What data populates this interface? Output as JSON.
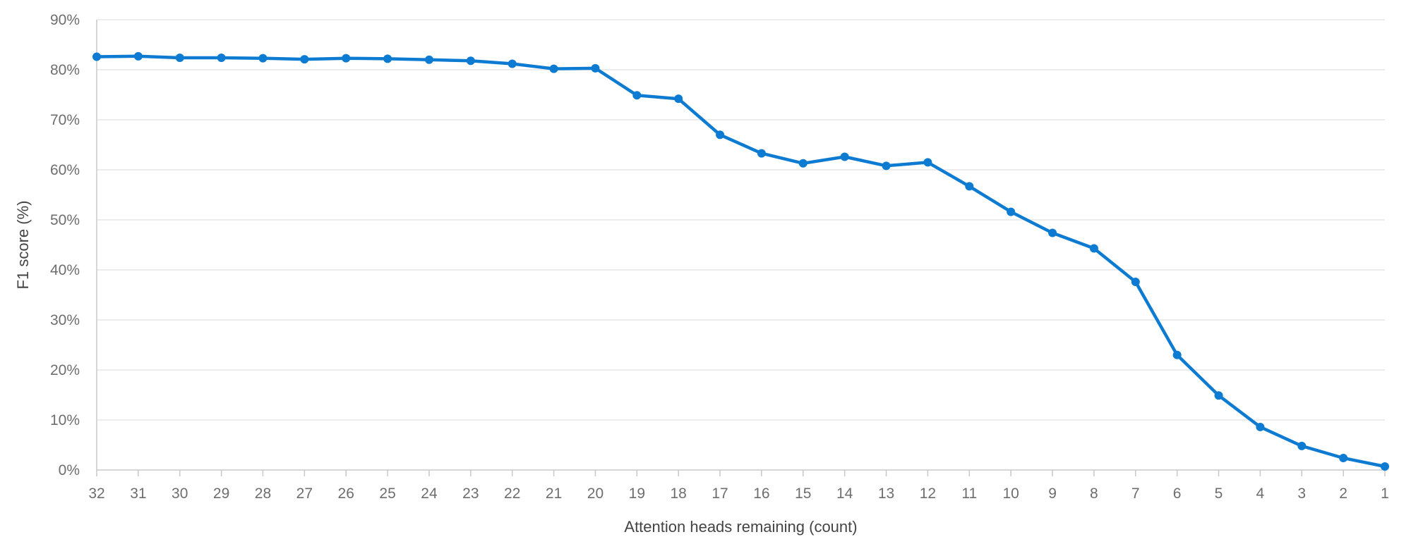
{
  "chart_data": {
    "type": "line",
    "title": "",
    "xlabel": "Attention heads remaining (count)",
    "ylabel": "F1 score (%)",
    "x": [
      "32",
      "31",
      "30",
      "29",
      "28",
      "27",
      "26",
      "25",
      "24",
      "23",
      "22",
      "21",
      "20",
      "19",
      "18",
      "17",
      "16",
      "15",
      "14",
      "13",
      "12",
      "11",
      "10",
      "9",
      "8",
      "7",
      "6",
      "5",
      "4",
      "3",
      "2",
      "1"
    ],
    "series": [
      {
        "values": [
          82.6,
          82.7,
          82.4,
          82.4,
          82.3,
          82.1,
          82.3,
          82.2,
          82.0,
          81.8,
          81.2,
          80.2,
          80.3,
          74.9,
          74.2,
          67.0,
          63.3,
          61.3,
          62.6,
          60.8,
          61.5,
          56.7,
          51.6,
          47.4,
          44.3,
          37.6,
          23.0,
          14.9,
          8.6,
          4.8,
          2.4,
          0.7
        ],
        "color": "#0d7bd1"
      }
    ],
    "ylim": [
      0,
      90
    ],
    "yticks": [
      "0%",
      "10%",
      "20%",
      "30%",
      "40%",
      "50%",
      "60%",
      "70%",
      "80%",
      "90%"
    ],
    "grid": true,
    "legend": "none"
  }
}
